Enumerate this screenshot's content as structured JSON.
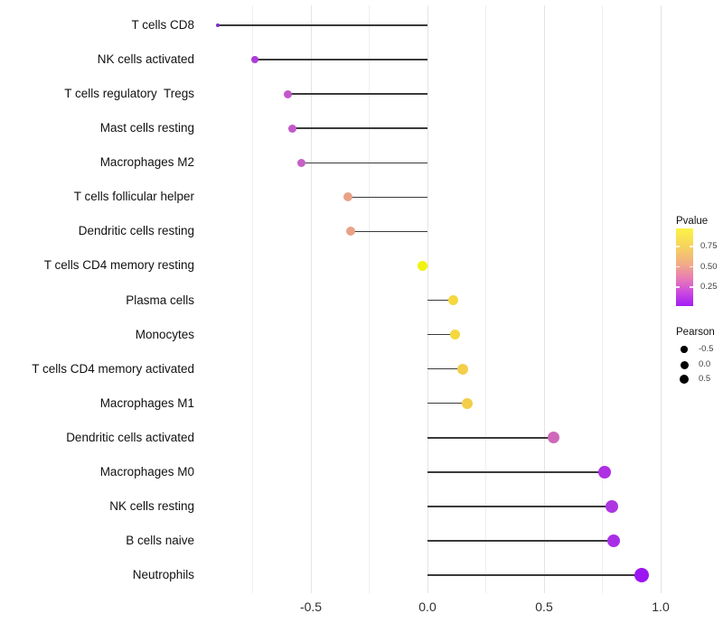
{
  "chart_data": {
    "type": "scatter",
    "variant": "horizontal-lollipop",
    "orientation": "horizontal",
    "title": "",
    "xlabel": "",
    "ylabel": "",
    "categories": [
      "T cells CD8",
      "NK cells activated",
      "T cells regulatory  Tregs",
      "Mast cells resting",
      "Macrophages M2",
      "T cells follicular helper",
      "Dendritic cells resting",
      "T cells CD4 memory resting",
      "Plasma cells",
      "Monocytes",
      "T cells CD4 memory activated",
      "Macrophages M1",
      "Dendritic cells activated",
      "Macrophages M0",
      "NK cells resting",
      "B cells naive",
      "Neutrophils"
    ],
    "series": [
      {
        "name": "Pearson",
        "values": [
          -0.9,
          -0.74,
          -0.6,
          -0.58,
          -0.54,
          -0.34,
          -0.33,
          -0.02,
          0.11,
          0.12,
          0.15,
          0.17,
          0.54,
          0.76,
          0.79,
          0.8,
          0.92
        ]
      }
    ],
    "pvalues_estimated_from_color": [
      0.05,
      0.1,
      0.28,
      0.3,
      0.3,
      0.6,
      0.6,
      0.95,
      0.8,
      0.8,
      0.75,
      0.75,
      0.35,
      0.12,
      0.12,
      0.1,
      0.03
    ],
    "point_colors": [
      "#7E2CC8",
      "#AC3BD9",
      "#C358CA",
      "#C358CA",
      "#C75FC5",
      "#E9A287",
      "#E9A287",
      "#F2F213",
      "#F4D83D",
      "#F4D83D",
      "#F3CE4B",
      "#F3CE4B",
      "#CE68B8",
      "#AD30E3",
      "#AE36E2",
      "#A92FE7",
      "#9B16F0"
    ],
    "point_radius_px": [
      2,
      4,
      4.5,
      4.5,
      4.5,
      5,
      5,
      5.5,
      5.5,
      5.5,
      6,
      6,
      6.5,
      7,
      7,
      7,
      8
    ],
    "baseline": 0.0,
    "xlim": [
      -0.99,
      1.07
    ],
    "x_tick_values": [
      -0.5,
      0.0,
      0.5,
      1.0
    ],
    "x_tick_labels": [
      "-0.5",
      "0.0",
      "0.5",
      "1.0"
    ],
    "x_minor_grid_values": [
      -0.75,
      -0.25,
      0.25,
      0.75
    ],
    "grid": "vertical-only",
    "legend_position": "right"
  },
  "legends": {
    "pvalue": {
      "title": "Pvalue",
      "tick_labels": [
        "0.75",
        "0.50",
        "0.25"
      ],
      "gradient_top_to_bottom": [
        "#FBF346",
        "#F7D55C",
        "#F2AE85",
        "#E87BB6",
        "#CC4BDE",
        "#A21DF4"
      ]
    },
    "pearson": {
      "title": "Pearson",
      "items": [
        {
          "label": "-0.5"
        },
        {
          "label": "0.0"
        },
        {
          "label": "0.5"
        }
      ]
    }
  },
  "colors": {
    "stem": "#3A3A3A",
    "grid_minor": "#EFEFEF",
    "grid_major": "#E4E4E4",
    "axis_text": "#2E2E2E",
    "background": "#FFFFFF"
  }
}
